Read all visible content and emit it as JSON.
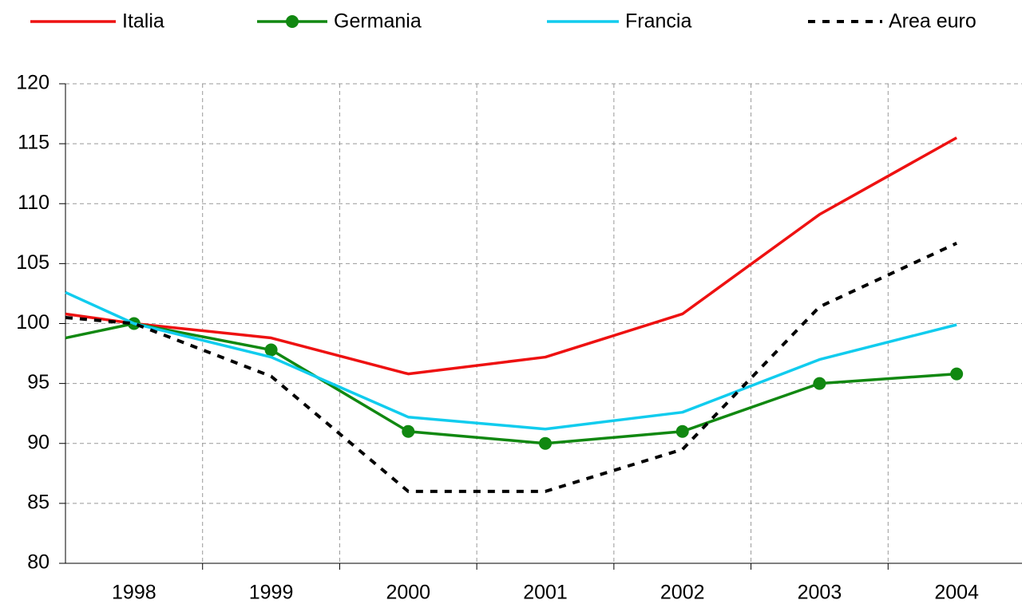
{
  "chart_data": {
    "type": "line",
    "categories": [
      null,
      "1998",
      "1999",
      "2000",
      "2001",
      "2002",
      "2003",
      "2004"
    ],
    "series": [
      {
        "name": "Italia",
        "color": "#ee1111",
        "values": [
          100.8,
          100,
          98.8,
          95.8,
          97.2,
          100.8,
          109.1,
          115.5
        ]
      },
      {
        "name": "Germania",
        "color": "#118811",
        "marker": "circle",
        "values": [
          98.8,
          100,
          97.8,
          91.0,
          90.0,
          91.0,
          95.0,
          95.8
        ]
      },
      {
        "name": "Francia",
        "color": "#11ccee",
        "values": [
          102.6,
          100,
          97.2,
          92.2,
          91.2,
          92.6,
          97.0,
          99.9
        ]
      },
      {
        "name": "Area euro",
        "color": "#000000",
        "line_style": "dashed",
        "values": [
          100.5,
          100,
          95.6,
          86.0,
          86.0,
          89.5,
          101.4,
          106.7
        ]
      }
    ],
    "ylim": [
      80,
      120
    ],
    "yticks": [
      80,
      85,
      90,
      95,
      100,
      105,
      110,
      115,
      120
    ],
    "grid": true,
    "legend": "top"
  }
}
